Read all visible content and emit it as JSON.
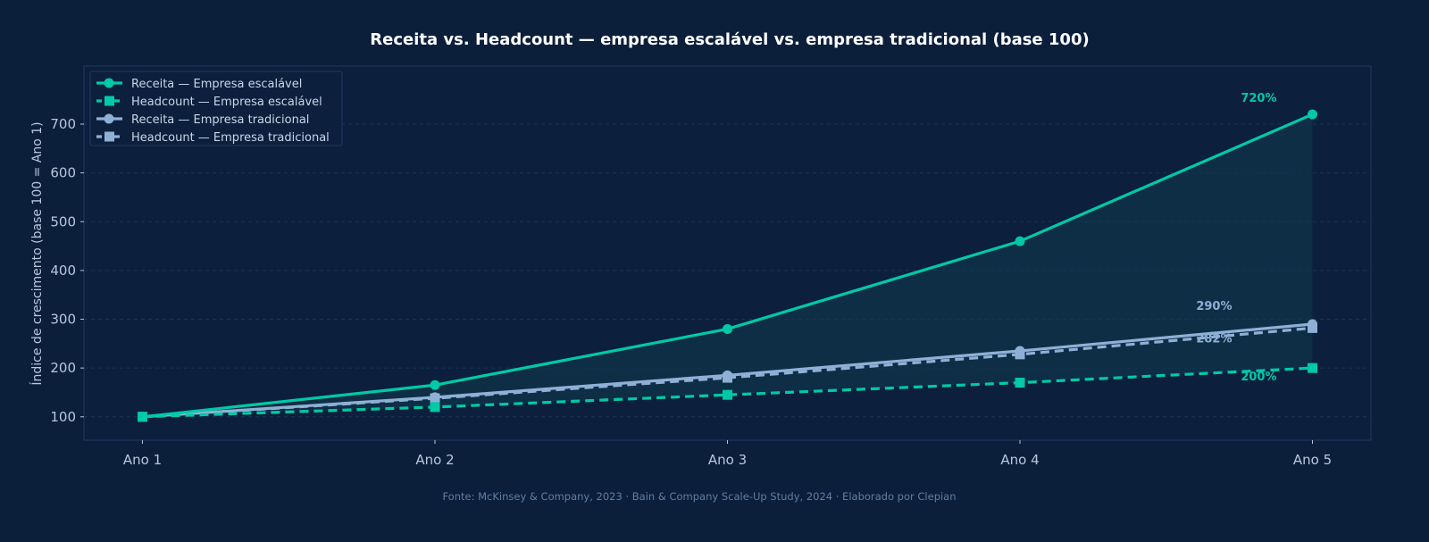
{
  "chart_data": {
    "type": "line",
    "title": "Receita vs. Headcount — empresa escalável vs. empresa tradicional (base 100)",
    "xlabel": "",
    "ylabel": "Índice de crescimento (base 100 = Ano 1)",
    "categories": [
      "Ano 1",
      "Ano 2",
      "Ano 3",
      "Ano 4",
      "Ano 5"
    ],
    "yticks": [
      100,
      200,
      300,
      400,
      500,
      600,
      700
    ],
    "ylim": [
      52,
      819
    ],
    "grid": "horizontal dashed",
    "legend": "top-left",
    "series": [
      {
        "name": "Receita — Empresa escalável",
        "values": [
          100,
          165,
          280,
          460,
          720
        ],
        "color": "#00c9a7",
        "style": "solid",
        "marker": "circle",
        "end_label": "720%"
      },
      {
        "name": "Headcount — Empresa escalável",
        "values": [
          100,
          120,
          145,
          170,
          200
        ],
        "color": "#00c9a7",
        "style": "dashed",
        "marker": "square",
        "end_label": "200%"
      },
      {
        "name": "Receita — Empresa tradicional",
        "values": [
          100,
          140,
          185,
          235,
          290
        ],
        "color": "#8fb0d6",
        "style": "solid",
        "marker": "circle",
        "end_label": "290%"
      },
      {
        "name": "Headcount — Empresa tradicional",
        "values": [
          100,
          138,
          180,
          228,
          282
        ],
        "color": "#8fb0d6",
        "style": "dashed",
        "marker": "square",
        "end_label": "282%"
      }
    ],
    "source": "Fonte: McKinsey & Company, 2023 · Bain & Company Scale-Up Study, 2024 · Elaborado por Clepian"
  }
}
